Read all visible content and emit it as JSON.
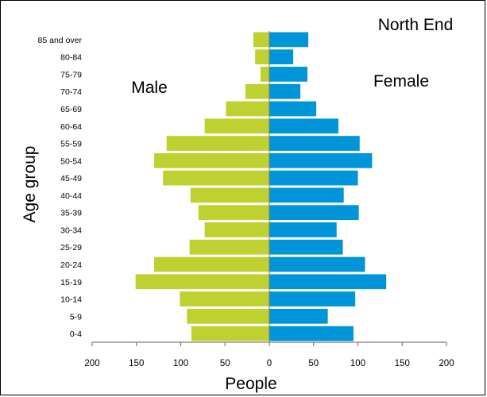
{
  "chart_data": {
    "type": "bar",
    "orientation": "horizontal-pyramid",
    "title": "North End",
    "xlabel": "People",
    "ylabel": "Age group",
    "categories": [
      "0-4",
      "5-9",
      "10-14",
      "15-19",
      "20-24",
      "25-29",
      "30-34",
      "35-39",
      "40-44",
      "45-49",
      "50-54",
      "55-59",
      "60-64",
      "65-69",
      "70-74",
      "75-79",
      "80-84",
      "85 and over"
    ],
    "series": [
      {
        "name": "Male",
        "color": "#bfd130",
        "side": "left",
        "values": [
          88,
          93,
          101,
          151,
          130,
          90,
          73,
          80,
          89,
          120,
          130,
          116,
          73,
          49,
          27,
          10,
          16,
          18
        ]
      },
      {
        "name": "Female",
        "color": "#0094d8",
        "side": "right",
        "values": [
          95,
          66,
          97,
          132,
          108,
          83,
          76,
          101,
          84,
          100,
          116,
          102,
          78,
          53,
          35,
          43,
          27,
          44
        ]
      }
    ],
    "xlim": [
      -200,
      200
    ],
    "x_ticks": [
      -200,
      -150,
      -100,
      -50,
      0,
      50,
      100,
      150,
      200
    ],
    "x_tick_labels": [
      "200",
      "150",
      "100",
      "50",
      "0",
      "50",
      "100",
      "150",
      "200"
    ],
    "grid": false,
    "legend": "none"
  }
}
